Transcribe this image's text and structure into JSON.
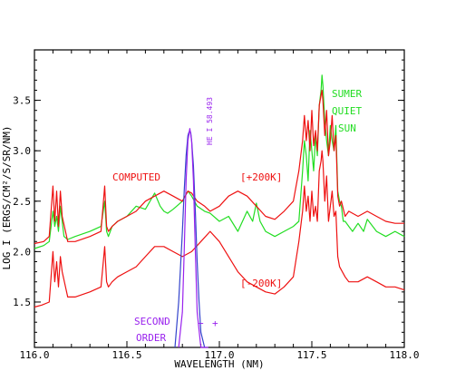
{
  "chart_data": {
    "type": "line",
    "xlabel": "WAVELENGTH (NM)",
    "ylabel": "LOG I (ERGS/CM²/S/SR/NM)",
    "xlim": [
      116.0,
      118.0
    ],
    "ylim": [
      1.05,
      4.0
    ],
    "xticks": [
      {
        "value": 116.0,
        "label": "116.0"
      },
      {
        "value": 116.5,
        "label": "116.5"
      },
      {
        "value": 117.0,
        "label": "117.0"
      },
      {
        "value": 117.5,
        "label": "117.5"
      },
      {
        "value": 118.0,
        "label": "118.0"
      }
    ],
    "yticks": [
      {
        "value": 1.5,
        "label": "1.5"
      },
      {
        "value": 2.0,
        "label": "2.0"
      },
      {
        "value": 2.5,
        "label": "2.5"
      },
      {
        "value": 3.0,
        "label": "3.0"
      },
      {
        "value": 3.5,
        "label": "3.5"
      }
    ],
    "grid": false,
    "colors": {
      "computed": "#ee1111",
      "observed": "#22dd22",
      "second_order": "#9922ee",
      "axis": "#000000"
    },
    "annotations": {
      "computed": "COMPUTED",
      "plus200": "[+200K]",
      "minus200": "[-200K]",
      "sumer1": "SUMER",
      "sumer2": "QUIET",
      "sumer3": "SUN",
      "line_id": "HE I  58.493",
      "second1": "SECOND",
      "second2": "ORDER",
      "minus_sign": "−",
      "plus_sign": "+"
    },
    "series": [
      {
        "key": "observed",
        "x": [
          116.0,
          116.05,
          116.08,
          116.1,
          116.11,
          116.12,
          116.13,
          116.14,
          116.16,
          116.18,
          116.22,
          116.3,
          116.36,
          116.38,
          116.39,
          116.4,
          116.42,
          116.45,
          116.5,
          116.55,
          116.6,
          116.65,
          116.68,
          116.7,
          116.72,
          116.75,
          116.8,
          116.83,
          116.85,
          116.88,
          116.92,
          116.95,
          117.0,
          117.05,
          117.1,
          117.15,
          117.18,
          117.2,
          117.22,
          117.25,
          117.3,
          117.35,
          117.4,
          117.43,
          117.45,
          117.46,
          117.47,
          117.48,
          117.49,
          117.5,
          117.51,
          117.52,
          117.53,
          117.54,
          117.55,
          117.555,
          117.56,
          117.57,
          117.58,
          117.59,
          117.6,
          117.61,
          117.62,
          117.63,
          117.64,
          117.65,
          117.66,
          117.67,
          117.68,
          117.7,
          117.72,
          117.75,
          117.78,
          117.8,
          117.85,
          117.9,
          117.95,
          118.0
        ],
        "y": [
          2.03,
          2.06,
          2.1,
          2.4,
          2.25,
          2.35,
          2.2,
          2.45,
          2.15,
          2.12,
          2.15,
          2.2,
          2.25,
          2.5,
          2.2,
          2.15,
          2.25,
          2.3,
          2.35,
          2.45,
          2.42,
          2.58,
          2.45,
          2.4,
          2.38,
          2.42,
          2.5,
          2.6,
          2.55,
          2.45,
          2.4,
          2.38,
          2.3,
          2.35,
          2.2,
          2.4,
          2.3,
          2.48,
          2.3,
          2.2,
          2.15,
          2.2,
          2.25,
          2.3,
          2.8,
          3.1,
          2.95,
          2.7,
          3.2,
          3.0,
          2.8,
          3.15,
          2.95,
          3.45,
          3.6,
          3.75,
          3.65,
          3.3,
          3.1,
          2.95,
          3.25,
          3.1,
          3.0,
          3.25,
          2.6,
          2.5,
          2.45,
          2.3,
          2.3,
          2.25,
          2.2,
          2.28,
          2.2,
          2.32,
          2.2,
          2.15,
          2.2,
          2.15
        ]
      },
      {
        "key": "plus200",
        "x": [
          116.0,
          116.05,
          116.08,
          116.1,
          116.11,
          116.12,
          116.13,
          116.14,
          116.15,
          116.18,
          116.22,
          116.3,
          116.36,
          116.38,
          116.39,
          116.4,
          116.42,
          116.45,
          116.5,
          116.55,
          116.6,
          116.65,
          116.7,
          116.75,
          116.8,
          116.83,
          116.85,
          116.88,
          116.92,
          116.95,
          117.0,
          117.05,
          117.1,
          117.15,
          117.2,
          117.25,
          117.3,
          117.35,
          117.4,
          117.43,
          117.45,
          117.46,
          117.47,
          117.48,
          117.49,
          117.5,
          117.51,
          117.52,
          117.53,
          117.54,
          117.55,
          117.555,
          117.56,
          117.57,
          117.58,
          117.59,
          117.6,
          117.61,
          117.62,
          117.63,
          117.64,
          117.65,
          117.66,
          117.68,
          117.7,
          117.75,
          117.8,
          117.85,
          117.9,
          117.95,
          118.0
        ],
        "y": [
          2.08,
          2.1,
          2.15,
          2.65,
          2.3,
          2.6,
          2.25,
          2.6,
          2.35,
          2.1,
          2.1,
          2.15,
          2.2,
          2.65,
          2.25,
          2.2,
          2.25,
          2.3,
          2.35,
          2.4,
          2.5,
          2.55,
          2.6,
          2.55,
          2.5,
          2.6,
          2.58,
          2.5,
          2.45,
          2.4,
          2.45,
          2.55,
          2.6,
          2.55,
          2.45,
          2.35,
          2.32,
          2.4,
          2.5,
          2.8,
          3.1,
          3.35,
          3.1,
          3.3,
          3.0,
          3.4,
          3.05,
          3.2,
          3.0,
          3.45,
          3.55,
          3.6,
          3.5,
          3.15,
          3.4,
          2.95,
          3.1,
          3.35,
          3.0,
          3.15,
          2.55,
          2.45,
          2.5,
          2.35,
          2.4,
          2.35,
          2.4,
          2.35,
          2.3,
          2.28,
          2.28
        ]
      },
      {
        "key": "minus200",
        "x": [
          116.0,
          116.04,
          116.08,
          116.1,
          116.11,
          116.12,
          116.13,
          116.14,
          116.15,
          116.18,
          116.22,
          116.3,
          116.36,
          116.38,
          116.39,
          116.4,
          116.42,
          116.45,
          116.5,
          116.55,
          116.6,
          116.65,
          116.7,
          116.75,
          116.8,
          116.85,
          116.9,
          116.95,
          117.0,
          117.05,
          117.1,
          117.15,
          117.2,
          117.25,
          117.3,
          117.35,
          117.4,
          117.43,
          117.45,
          117.46,
          117.47,
          117.48,
          117.49,
          117.5,
          117.51,
          117.52,
          117.53,
          117.54,
          117.55,
          117.555,
          117.56,
          117.57,
          117.58,
          117.59,
          117.6,
          117.61,
          117.62,
          117.63,
          117.64,
          117.65,
          117.68,
          117.7,
          117.75,
          117.8,
          117.85,
          117.9,
          117.95,
          118.0
        ],
        "y": [
          1.45,
          1.47,
          1.5,
          2.0,
          1.7,
          1.9,
          1.65,
          1.95,
          1.8,
          1.55,
          1.55,
          1.6,
          1.65,
          2.05,
          1.7,
          1.65,
          1.7,
          1.75,
          1.8,
          1.85,
          1.95,
          2.05,
          2.05,
          2.0,
          1.95,
          2.0,
          2.1,
          2.2,
          2.1,
          1.95,
          1.8,
          1.7,
          1.65,
          1.6,
          1.58,
          1.65,
          1.75,
          2.1,
          2.4,
          2.65,
          2.4,
          2.55,
          2.3,
          2.6,
          2.35,
          2.45,
          2.3,
          2.8,
          2.9,
          3.0,
          2.9,
          2.5,
          2.75,
          2.3,
          2.45,
          2.6,
          2.35,
          2.4,
          1.95,
          1.85,
          1.75,
          1.7,
          1.7,
          1.75,
          1.7,
          1.65,
          1.65,
          1.62
        ]
      },
      {
        "key": "blue_profile",
        "x": [
          116.76,
          116.78,
          116.8,
          116.81,
          116.82,
          116.83,
          116.835,
          116.84,
          116.845,
          116.85,
          116.86,
          116.87,
          116.88,
          116.89,
          116.9,
          116.92
        ],
        "y": [
          1.0,
          1.5,
          2.2,
          2.6,
          2.95,
          3.15,
          3.18,
          3.2,
          3.18,
          3.1,
          2.85,
          2.4,
          1.9,
          1.5,
          1.2,
          1.0
        ]
      },
      {
        "key": "second_order",
        "x": [
          116.78,
          116.8,
          116.81,
          116.82,
          116.83,
          116.84,
          116.85,
          116.86,
          116.87,
          116.88,
          116.9,
          116.92,
          116.94
        ],
        "y": [
          1.05,
          1.4,
          2.0,
          2.7,
          3.1,
          3.22,
          3.1,
          2.7,
          2.0,
          1.4,
          1.05,
          1.05,
          1.05
        ]
      }
    ]
  }
}
